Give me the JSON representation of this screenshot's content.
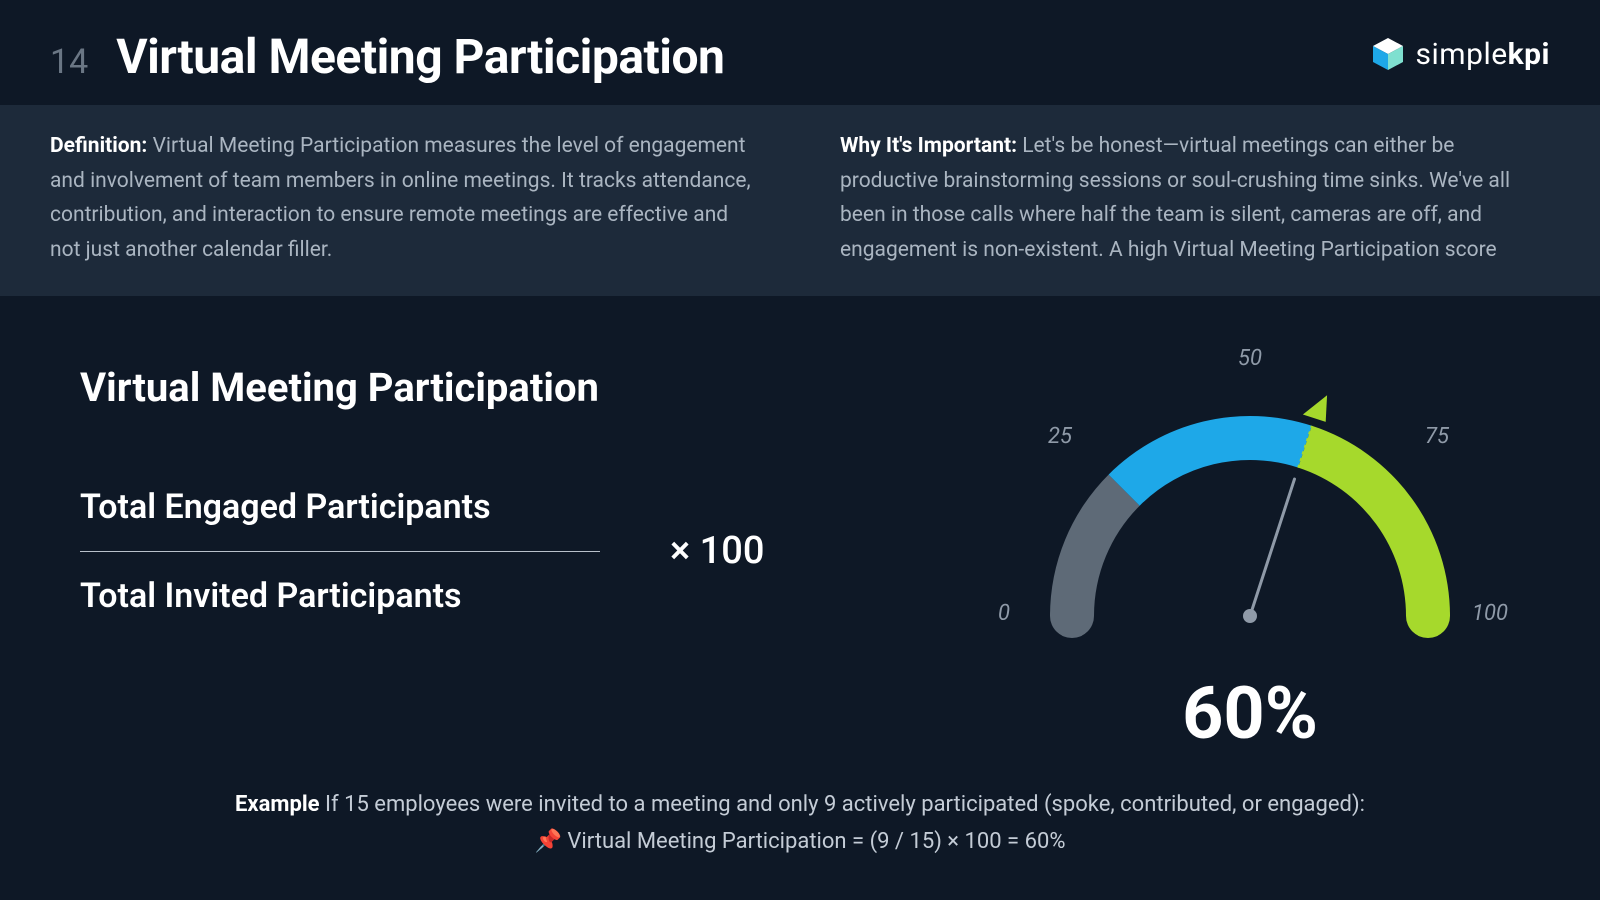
{
  "page_number": "14",
  "title": "Virtual Meeting Participation",
  "brand": {
    "name": "simplekpi"
  },
  "definition": {
    "label": "Definition:",
    "text": "Virtual Meeting Participation measures the level of engagement and involvement of team members in online meetings. It tracks attendance, contribution, and interaction to ensure remote meetings are effective and not just another calendar filler."
  },
  "importance": {
    "label": "Why It's Important:",
    "text": "Let's be honest—virtual meetings can either be productive brainstorming sessions or soul-crushing time sinks. We've all been in those calls where half the team is silent, cameras are off, and engagement is non-existent. A high Virtual Meeting Participation score"
  },
  "formula": {
    "heading": "Virtual Meeting Participation",
    "numerator": "Total Engaged Participants",
    "denominator": "Total Invited Participants",
    "multiply": "× 100"
  },
  "gauge": {
    "type": "gauge",
    "value_pct": 60,
    "display_value": "60%",
    "min": 0,
    "max": 100,
    "tick_labels": {
      "0": "0",
      "25": "25",
      "50": "50",
      "75": "75",
      "100": "100"
    },
    "tick_fontsize": 22,
    "tick_font_style": "italic",
    "tick_color": "#8f9aa8",
    "segments": [
      {
        "from": 0,
        "to": 25,
        "color": "#5e6a77"
      },
      {
        "from": 25,
        "to": 60,
        "color": "#1ea8e8"
      },
      {
        "from": 60,
        "to": 100,
        "color": "#a6d92c"
      }
    ],
    "arc_thickness": 44,
    "needle_color": "#8f9aa8",
    "pointer_color": "#a6d92c",
    "background_color": "#0e1826",
    "value_fontsize": 72,
    "value_color": "#ffffff"
  },
  "example": {
    "label": "Example",
    "line1": "If 15 employees were invited to a meeting and only 9 actively participated (spoke, contributed, or engaged):",
    "line2": "📌 Virtual Meeting Participation = (9 / 15) × 100 = 60%"
  },
  "colors": {
    "page_bg": "#0e1826",
    "band_bg": "#1d2a3a",
    "text_primary": "#ffffff",
    "text_muted": "#aab5c1",
    "page_number": "#6a7684"
  }
}
